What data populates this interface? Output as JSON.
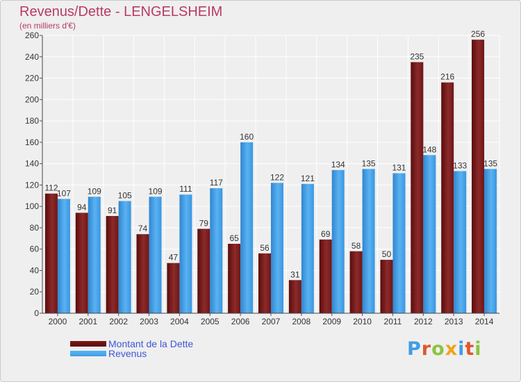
{
  "title": "Revenus/Dette - LENGELSHEIM",
  "subtitle": "(en milliers d'€)",
  "logo": "Proxiti",
  "colors": {
    "title": "#b83a66",
    "debt": "#7a1a1a",
    "revenue": "#3f9de6",
    "grid": "#ffffff",
    "background": "#efefef",
    "legend_text": "#3e56d6"
  },
  "chart_data": {
    "type": "bar",
    "categories": [
      "2000",
      "2001",
      "2002",
      "2003",
      "2004",
      "2005",
      "2006",
      "2007",
      "2008",
      "2009",
      "2010",
      "2011",
      "2012",
      "2013",
      "2014"
    ],
    "series": [
      {
        "name": "Montant de la Dette",
        "values": [
          112,
          94,
          91,
          74,
          47,
          79,
          65,
          56,
          31,
          69,
          58,
          50,
          235,
          216,
          256
        ]
      },
      {
        "name": "Revenus",
        "values": [
          107,
          109,
          105,
          109,
          111,
          117,
          160,
          122,
          121,
          134,
          135,
          131,
          148,
          133,
          135
        ]
      }
    ],
    "ylim": [
      0,
      260
    ],
    "yticks": [
      0,
      20,
      40,
      60,
      80,
      100,
      120,
      140,
      160,
      180,
      200,
      220,
      240,
      260
    ],
    "grid": true,
    "legend_position": "bottom-left"
  }
}
